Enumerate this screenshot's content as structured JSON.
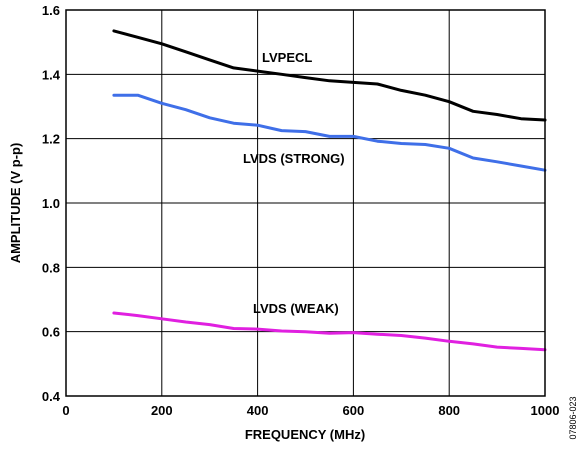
{
  "chart_data": {
    "type": "line",
    "title": "",
    "xlabel": "FREQUENCY (MHz)",
    "ylabel": "AMPLITUDE (V p-p)",
    "xlim": [
      0,
      1000
    ],
    "ylim": [
      0.4,
      1.6
    ],
    "x_ticks": [
      0,
      200,
      400,
      600,
      800,
      1000
    ],
    "y_ticks": [
      0.4,
      0.6,
      0.8,
      1.0,
      1.2,
      1.4,
      1.6
    ],
    "x_tick_labels": [
      "0",
      "200",
      "400",
      "600",
      "800",
      "1000"
    ],
    "y_tick_labels": [
      "0.4",
      "0.6",
      "0.8",
      "1.0",
      "1.2",
      "1.4",
      "1.6"
    ],
    "grid": true,
    "legend": "none",
    "figure_id": "07806-023",
    "series": [
      {
        "name": "LVPECL",
        "color": "#000000",
        "x": [
          100,
          150,
          200,
          250,
          300,
          350,
          400,
          450,
          500,
          550,
          600,
          650,
          700,
          750,
          800,
          850,
          900,
          950,
          1000
        ],
        "y": [
          1.535,
          1.515,
          1.495,
          1.47,
          1.445,
          1.42,
          1.41,
          1.4,
          1.39,
          1.38,
          1.375,
          1.37,
          1.35,
          1.335,
          1.315,
          1.285,
          1.275,
          1.262,
          1.258
        ]
      },
      {
        "name": "LVDS (STRONG)",
        "color": "#3f6fe8",
        "x": [
          100,
          150,
          200,
          250,
          300,
          350,
          400,
          450,
          500,
          550,
          600,
          650,
          700,
          750,
          800,
          850,
          900,
          950,
          1000
        ],
        "y": [
          1.335,
          1.335,
          1.31,
          1.29,
          1.265,
          1.248,
          1.242,
          1.225,
          1.222,
          1.207,
          1.207,
          1.192,
          1.185,
          1.182,
          1.17,
          1.14,
          1.128,
          1.115,
          1.102
        ]
      },
      {
        "name": "LVDS (WEAK)",
        "color": "#e020e0",
        "x": [
          100,
          150,
          200,
          250,
          300,
          350,
          400,
          450,
          500,
          550,
          600,
          650,
          700,
          750,
          800,
          850,
          900,
          950,
          1000
        ],
        "y": [
          0.658,
          0.65,
          0.64,
          0.63,
          0.622,
          0.61,
          0.608,
          0.602,
          0.6,
          0.595,
          0.597,
          0.592,
          0.588,
          0.58,
          0.57,
          0.562,
          0.552,
          0.548,
          0.544
        ]
      }
    ]
  }
}
